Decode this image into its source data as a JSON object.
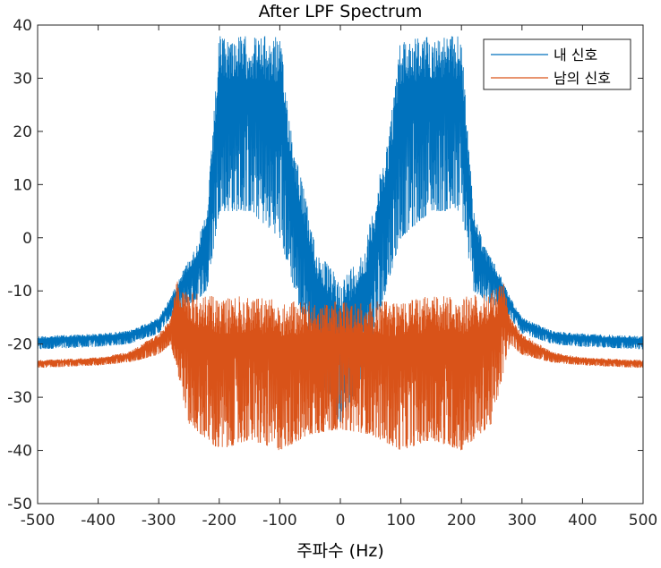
{
  "chart_data": {
    "type": "line",
    "title": "After LPF Spectrum",
    "xlabel": "주파수 (Hz)",
    "ylabel": "",
    "xlim": [
      -500,
      500
    ],
    "ylim": [
      -50,
      40
    ],
    "xticks": [
      -500,
      -400,
      -300,
      -200,
      -100,
      0,
      100,
      200,
      300,
      400,
      500
    ],
    "yticks": [
      -50,
      -40,
      -30,
      -20,
      -10,
      0,
      10,
      20,
      30,
      40
    ],
    "xtick_labels": [
      "-500",
      "-400",
      "-300",
      "-200",
      "-100",
      "0",
      "100",
      "200",
      "300",
      "400",
      "500"
    ],
    "ytick_labels": [
      "-50",
      "-40",
      "-30",
      "-20",
      "-10",
      "0",
      "10",
      "20",
      "30",
      "40"
    ],
    "grid": false,
    "legend_position": "top-right",
    "series": [
      {
        "name": "내 신호",
        "color": "#0072BD",
        "envelope_x": [
          -500,
          -400,
          -350,
          -300,
          -280,
          -260,
          -240,
          -220,
          -200,
          -150,
          -100,
          -80,
          -40,
          0,
          40,
          80,
          100,
          150,
          200,
          220,
          240,
          260,
          280,
          300,
          350,
          400,
          500
        ],
        "upper": [
          -18.5,
          -18.0,
          -17.5,
          -15.0,
          -11.0,
          -6.0,
          -2.0,
          5.0,
          38.0,
          38.0,
          38.0,
          20.0,
          -2.0,
          -8.0,
          -2.0,
          20.0,
          38.0,
          38.0,
          38.0,
          5.0,
          -2.0,
          -6.0,
          -11.0,
          -15.0,
          -17.5,
          -18.0,
          -18.5
        ],
        "lower": [
          -21.0,
          -20.5,
          -20.0,
          -18.0,
          -15.0,
          -13.0,
          -12.0,
          -10.0,
          5.0,
          5.0,
          0.0,
          -8.0,
          -25.0,
          -35.0,
          -25.0,
          -8.0,
          0.0,
          5.0,
          5.0,
          -10.0,
          -12.0,
          -13.0,
          -15.0,
          -18.0,
          -20.0,
          -20.5,
          -21.0
        ]
      },
      {
        "name": "남의 신호",
        "color": "#D95319",
        "envelope_x": [
          -500,
          -400,
          -350,
          -300,
          -280,
          -270,
          -250,
          -200,
          -150,
          -100,
          -50,
          0,
          50,
          100,
          150,
          200,
          250,
          270,
          280,
          300,
          350,
          400,
          500
        ],
        "upper": [
          -23.0,
          -22.5,
          -21.5,
          -18.0,
          -15.0,
          -8.0,
          -10.0,
          -11.0,
          -11.0,
          -11.5,
          -12.0,
          -12.0,
          -12.0,
          -11.5,
          -11.0,
          -11.0,
          -10.0,
          -8.0,
          -15.0,
          -18.0,
          -21.5,
          -22.5,
          -23.0
        ],
        "lower": [
          -24.5,
          -24.0,
          -23.5,
          -22.0,
          -20.0,
          -25.0,
          -35.0,
          -40.0,
          -38.0,
          -40.0,
          -37.0,
          -36.0,
          -37.0,
          -40.0,
          -38.0,
          -40.0,
          -35.0,
          -25.0,
          -20.0,
          -22.0,
          -23.5,
          -24.0,
          -24.5
        ]
      }
    ]
  }
}
